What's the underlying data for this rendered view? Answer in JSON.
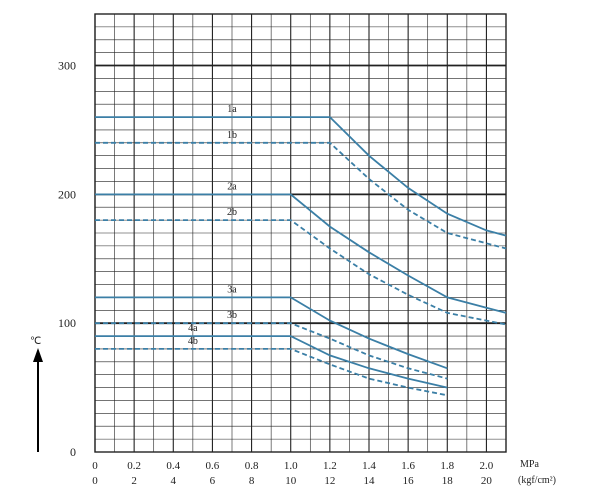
{
  "chart_data": {
    "type": "line",
    "title": "",
    "ylabel": "℃",
    "xlabel_units": [
      "MPa",
      "(kgf/cm²)"
    ],
    "x_range_mpa": [
      0,
      2.0
    ],
    "xlim": [
      0,
      2.1
    ],
    "ylim": [
      0,
      340
    ],
    "grid": true,
    "x_ticks_mpa": [
      "0",
      "0.2",
      "0.4",
      "0.6",
      "0.8",
      "1.0",
      "1.2",
      "1.4",
      "1.6",
      "1.8",
      "2.0"
    ],
    "x_ticks_kgf": [
      "0",
      "2",
      "4",
      "6",
      "8",
      "10",
      "12",
      "14",
      "16",
      "18",
      "20"
    ],
    "y_ticks": [
      "0",
      "100",
      "200",
      "300"
    ],
    "colors": {
      "series": "#3b7fa6",
      "grid": "#222222"
    },
    "series": [
      {
        "name": "1a",
        "style": "solid",
        "x": [
          0,
          1.2,
          1.4,
          1.6,
          1.8,
          2.0,
          2.1
        ],
        "y": [
          260,
          260,
          230,
          205,
          185,
          172,
          168
        ]
      },
      {
        "name": "1b",
        "style": "dashed",
        "x": [
          0,
          1.2,
          1.4,
          1.6,
          1.8,
          2.0,
          2.1
        ],
        "y": [
          240,
          240,
          212,
          188,
          170,
          162,
          158
        ]
      },
      {
        "name": "2a",
        "style": "solid",
        "x": [
          0,
          1.0,
          1.2,
          1.4,
          1.6,
          1.8,
          2.0,
          2.1
        ],
        "y": [
          200,
          200,
          175,
          155,
          137,
          120,
          112,
          108
        ]
      },
      {
        "name": "2b",
        "style": "dashed",
        "x": [
          0,
          1.0,
          1.2,
          1.4,
          1.6,
          1.8,
          2.0,
          2.1
        ],
        "y": [
          180,
          180,
          158,
          138,
          122,
          108,
          102,
          99
        ]
      },
      {
        "name": "3a",
        "style": "solid",
        "x": [
          0,
          1.0,
          1.2,
          1.4,
          1.6,
          1.8
        ],
        "y": [
          120,
          120,
          102,
          88,
          76,
          65
        ]
      },
      {
        "name": "3b",
        "style": "dashed",
        "x": [
          0,
          1.0,
          1.2,
          1.4,
          1.6,
          1.8
        ],
        "y": [
          100,
          100,
          88,
          75,
          65,
          57
        ]
      },
      {
        "name": "4a",
        "style": "solid",
        "x": [
          0,
          1.0,
          1.2,
          1.4,
          1.6,
          1.8
        ],
        "y": [
          90,
          90,
          75,
          65,
          57,
          50
        ]
      },
      {
        "name": "4b",
        "style": "dashed",
        "x": [
          0,
          1.0,
          1.2,
          1.4,
          1.6,
          1.8
        ],
        "y": [
          80,
          80,
          68,
          57,
          50,
          44
        ]
      }
    ]
  }
}
